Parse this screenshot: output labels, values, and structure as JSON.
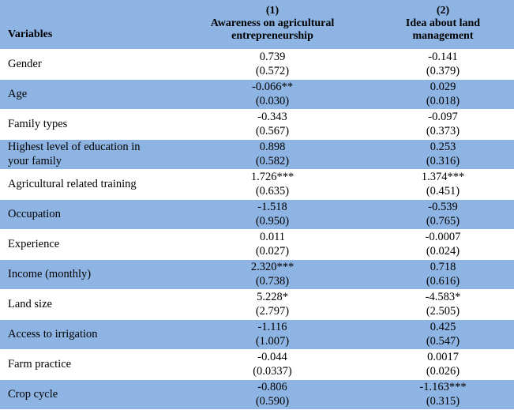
{
  "header": {
    "variables": "Variables",
    "col1_num": "(1)",
    "col1_title_1": "Awareness on agricultural",
    "col1_title_2": "entrepreneurship",
    "col2_num": "(2)",
    "col2_title_1": "Idea about land",
    "col2_title_2": "management"
  },
  "rows": [
    {
      "name": "Gender",
      "c1": "0.739",
      "c1se": "(0.572)",
      "c2": "-0.141",
      "c2se": "(0.379)"
    },
    {
      "name": "Age",
      "c1": "-0.066**",
      "c1se": "(0.030)",
      "c2": "0.029",
      "c2se": "(0.018)"
    },
    {
      "name": "Family types",
      "c1": "-0.343",
      "c1se": "(0.567)",
      "c2": "-0.097",
      "c2se": "(0.373)"
    },
    {
      "name_1": "Highest level of education in",
      "name_2": "your family",
      "c1": "0.898",
      "c1se": "(0.582)",
      "c2": "0.253",
      "c2se": "(0.316)"
    },
    {
      "name": "Agricultural related training",
      "c1": "1.726***",
      "c1se": "(0.635)",
      "c2": "1.374***",
      "c2se": "(0.451)"
    },
    {
      "name": "Occupation",
      "c1": "-1.518",
      "c1se": "(0.950)",
      "c2": "-0.539",
      "c2se": "(0.765)"
    },
    {
      "name": "Experience",
      "c1": "0.011",
      "c1se": "(0.027)",
      "c2": "-0.0007",
      "c2se": "(0.024)"
    },
    {
      "name": "Income (monthly)",
      "c1": "2.320***",
      "c1se": "(0.738)",
      "c2": "0.718",
      "c2se": "(0.616)"
    },
    {
      "name": "Land size",
      "c1": "5.228*",
      "c1se": "(2.797)",
      "c2": "-4.583*",
      "c2se": "(2.505)"
    },
    {
      "name": "Access to irrigation",
      "c1": "-1.116",
      "c1se": "(1.007)",
      "c2": "0.425",
      "c2se": "(0.547)"
    },
    {
      "name": "Farm practice",
      "c1": "-0.044",
      "c1se": "(0.0337)",
      "c2": "0.0017",
      "c2se": "(0.026)"
    },
    {
      "name": "Crop cycle",
      "c1": "-0.806",
      "c1se": "(0.590)",
      "c2": "-1.163***",
      "c2se": "(0.315)"
    }
  ]
}
